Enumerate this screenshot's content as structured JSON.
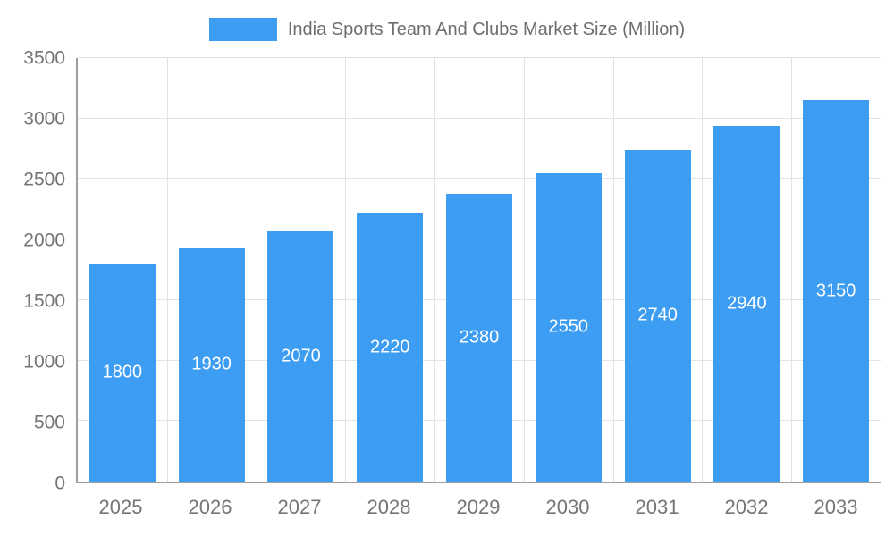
{
  "chart_data": {
    "type": "bar",
    "title": "India Sports Team And Clubs Market Size (Million)",
    "categories": [
      "2025",
      "2026",
      "2027",
      "2028",
      "2029",
      "2030",
      "2031",
      "2032",
      "2033"
    ],
    "values": [
      1800,
      1930,
      2070,
      2220,
      2380,
      2550,
      2740,
      2940,
      3150
    ],
    "xlabel": "",
    "ylabel": "",
    "ylim": [
      0,
      3500
    ],
    "ytick_step": 500,
    "grid": true,
    "legend_position": "top",
    "colors": {
      "bar": "#3d9df3",
      "axis_text": "#757575",
      "gridline": "#e3e3e3",
      "axis_line": "#9e9e9e",
      "value_label": "#ffffff"
    }
  }
}
